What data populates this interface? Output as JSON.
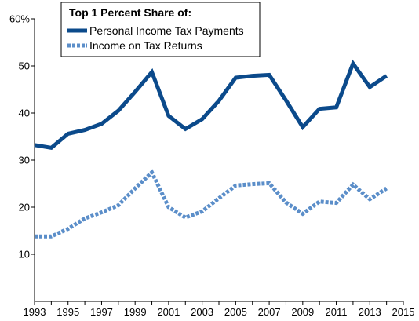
{
  "chart_data": {
    "type": "line",
    "x": [
      1993,
      1994,
      1995,
      1996,
      1997,
      1998,
      1999,
      2000,
      2001,
      2002,
      2003,
      2004,
      2005,
      2006,
      2007,
      2008,
      2009,
      2010,
      2011,
      2012,
      2013,
      2014
    ],
    "series": [
      {
        "name": "Personal Income Tax Payments",
        "color": "#0b4a8b",
        "style": "solid",
        "values": [
          33.2,
          32.6,
          35.6,
          36.4,
          37.7,
          40.5,
          44.5,
          48.7,
          39.4,
          36.6,
          38.7,
          42.6,
          47.5,
          47.9,
          48.1,
          42.7,
          37.0,
          40.9,
          41.2,
          50.5,
          45.5,
          47.9
        ]
      },
      {
        "name": "Income on Tax Returns",
        "color": "#5b8ec9",
        "style": "dotted",
        "values": [
          13.8,
          13.8,
          15.4,
          17.6,
          18.9,
          20.4,
          24.0,
          27.4,
          20.0,
          17.8,
          19.1,
          21.9,
          24.6,
          24.9,
          25.1,
          21.0,
          18.6,
          21.2,
          20.9,
          24.8,
          21.7,
          24.0
        ]
      }
    ],
    "legend_title": "Top 1 Percent Share of:",
    "legend_position": "top-center",
    "ylim": [
      0,
      60
    ],
    "yticks": [
      10,
      20,
      30,
      40,
      50
    ],
    "ytick_top": "60%",
    "xlim": [
      1993,
      2015
    ],
    "xticks": [
      1993,
      1995,
      1997,
      1999,
      2001,
      2003,
      2005,
      2007,
      2009,
      2011,
      2013,
      2015
    ],
    "grid": false
  }
}
